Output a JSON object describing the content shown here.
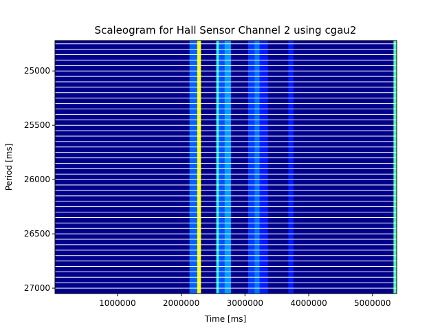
{
  "chart_data": {
    "type": "heatmap",
    "title": "Scaleogram for Hall Sensor Channel 2 using cgau2",
    "xlabel": "Time [ms]",
    "ylabel": "Period [ms]",
    "xlim": [
      20000,
      5380000
    ],
    "ylim": [
      27050,
      24720
    ],
    "y_inverted": true,
    "x_ticks": [
      1000000,
      2000000,
      3000000,
      4000000,
      5000000
    ],
    "x_tick_labels": [
      "1000000",
      "2000000",
      "3000000",
      "4000000",
      "5000000"
    ],
    "y_ticks": [
      25000,
      25500,
      26000,
      26500,
      27000
    ],
    "y_tick_labels": [
      "25000",
      "25500",
      "26000",
      "26500",
      "27000"
    ],
    "colormap": "jet",
    "background_color": "#00008b",
    "row_line_color": "#ffffff",
    "row_period_step": 50,
    "row_period_start": 24750,
    "row_period_end": 27050,
    "bright_columns": [
      {
        "t_start": 2130000,
        "t_end": 2250000,
        "intensity": 0.22
      },
      {
        "t_start": 2250000,
        "t_end": 2310000,
        "intensity": 0.62
      },
      {
        "t_start": 2550000,
        "t_end": 2590000,
        "intensity": 0.4
      },
      {
        "t_start": 2590000,
        "t_end": 2680000,
        "intensity": 0.2
      },
      {
        "t_start": 2680000,
        "t_end": 2780000,
        "intensity": 0.28
      },
      {
        "t_start": 3050000,
        "t_end": 3150000,
        "intensity": 0.18
      },
      {
        "t_start": 3150000,
        "t_end": 3230000,
        "intensity": 0.24
      },
      {
        "t_start": 3230000,
        "t_end": 3360000,
        "intensity": 0.15
      },
      {
        "t_start": 3680000,
        "t_end": 3760000,
        "intensity": 0.15
      },
      {
        "t_start": 5330000,
        "t_end": 5380000,
        "intensity": 0.45
      }
    ]
  }
}
